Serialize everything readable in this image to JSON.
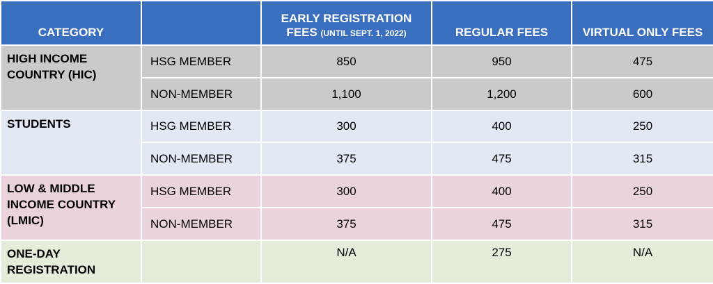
{
  "header": {
    "category": "CATEGORY",
    "subcategory": "",
    "early_line1": "EARLY REGISTRATION",
    "early_line2": "FEES",
    "early_note": "(UNTIL SEPT. 1, 2022)",
    "regular": "REGULAR FEES",
    "virtual": "VIRTUAL ONLY FEES"
  },
  "groups": [
    {
      "category_lines": [
        "HIGH INCOME",
        "COUNTRY (HIC)"
      ],
      "rows": [
        {
          "member": "HSG MEMBER",
          "early": "850",
          "regular": "950",
          "virtual": "475"
        },
        {
          "member": "NON-MEMBER",
          "early": "1,100",
          "regular": "1,200",
          "virtual": "600"
        }
      ]
    },
    {
      "category_lines": [
        "STUDENTS"
      ],
      "rows": [
        {
          "member": "HSG MEMBER",
          "early": "300",
          "regular": "400",
          "virtual": "250"
        },
        {
          "member": "NON-MEMBER",
          "early": "375",
          "regular": "475",
          "virtual": "315"
        }
      ]
    },
    {
      "category_lines": [
        "LOW & MIDDLE",
        "INCOME COUNTRY",
        "(LMIC)"
      ],
      "rows": [
        {
          "member": "HSG MEMBER",
          "early": "300",
          "regular": "400",
          "virtual": "250"
        },
        {
          "member": "NON-MEMBER",
          "early": "375",
          "regular": "475",
          "virtual": "315"
        }
      ]
    },
    {
      "category_lines": [
        "ONE-DAY",
        "REGISTRATION"
      ],
      "rows": [
        {
          "member": "",
          "early": "N/A",
          "regular": "275",
          "virtual": "N/A"
        }
      ]
    }
  ]
}
